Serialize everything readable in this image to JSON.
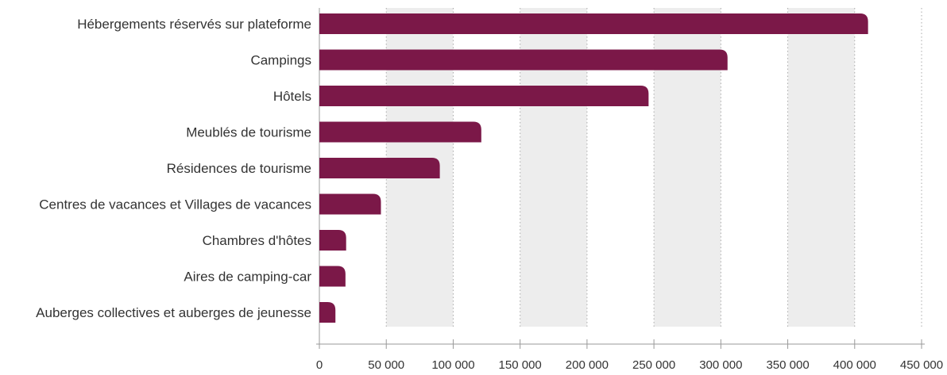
{
  "chart_data": {
    "type": "bar",
    "orientation": "horizontal",
    "categories": [
      "Hébergements réservés sur plateforme",
      "Campings",
      "Hôtels",
      "Meublés de tourisme",
      "Résidences de tourisme",
      "Centres de vacances et Villages de vacances",
      "Chambres d'hôtes",
      "Aires de camping-car",
      "Auberges collectives et auberges de jeunesse"
    ],
    "values": [
      410000,
      305000,
      246000,
      121000,
      90000,
      46000,
      20000,
      19500,
      12000
    ],
    "xlim": [
      0,
      450000
    ],
    "x_ticks": [
      0,
      50000,
      100000,
      150000,
      200000,
      250000,
      300000,
      350000,
      400000,
      450000
    ],
    "x_tick_labels": [
      "0",
      "50 000",
      "100 000",
      "150 000",
      "200 000",
      "250 000",
      "300 000",
      "350 000",
      "400 000",
      "450 000"
    ],
    "grid": "vertical dotted, alternating shaded bands",
    "colors": {
      "bar": "#7b1848",
      "band": "#ededed",
      "grid": "#aaaaaa",
      "axis": "#999999"
    }
  }
}
